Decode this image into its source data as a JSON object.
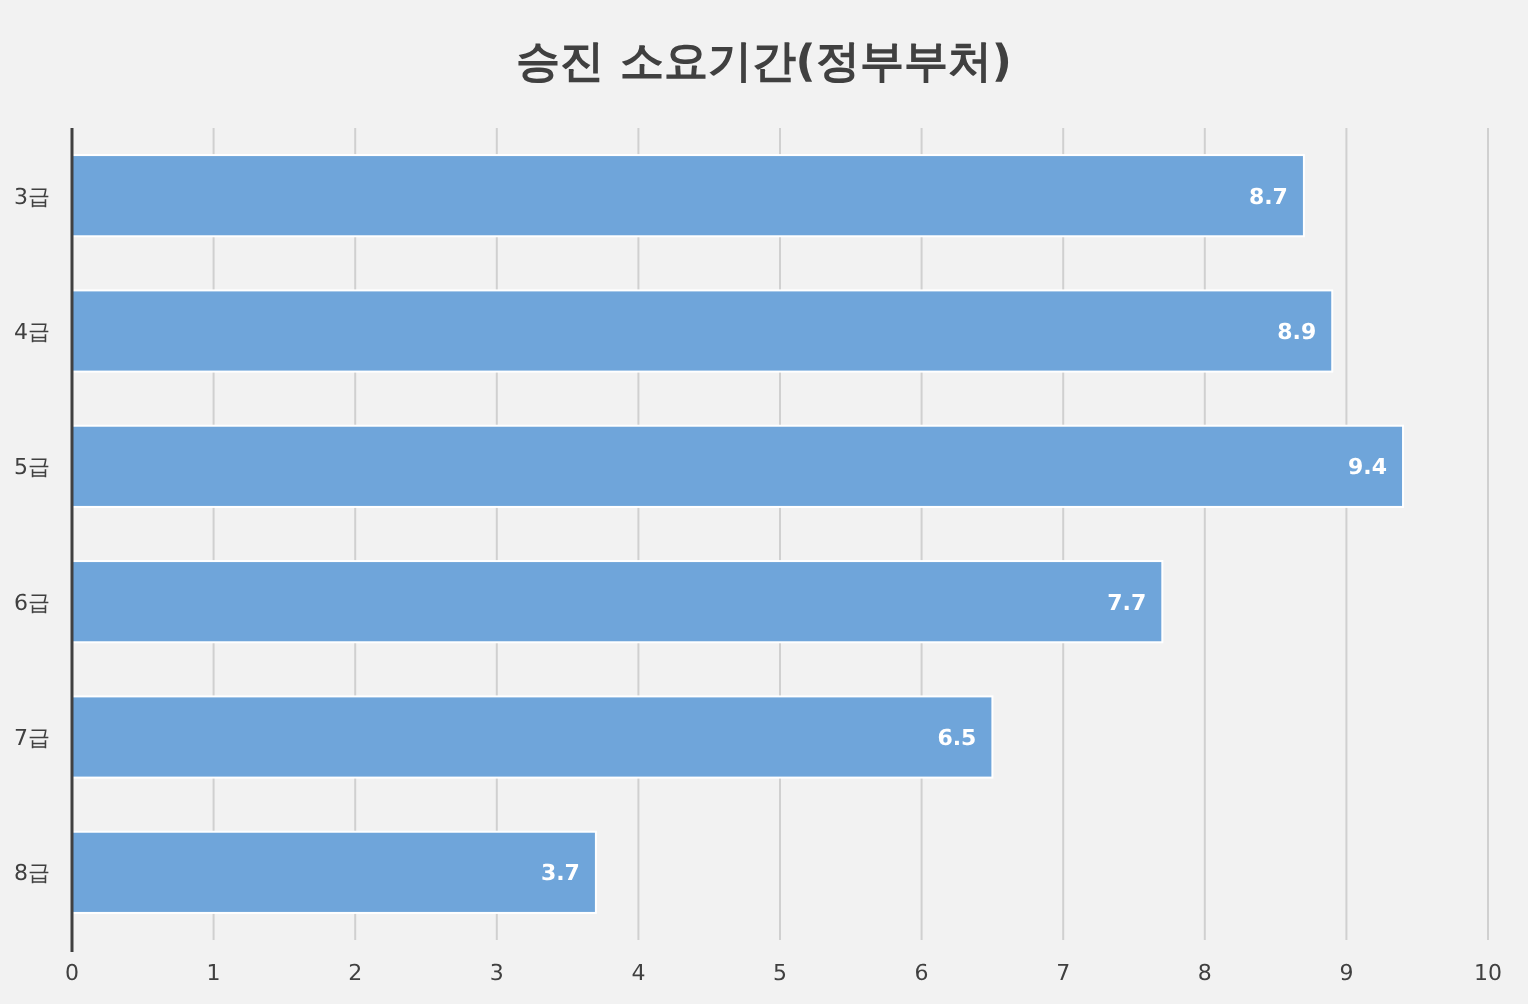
{
  "chart_data": {
    "type": "bar",
    "orientation": "horizontal",
    "title": "승진 소요기간(정부부처)",
    "categories": [
      "3급",
      "4급",
      "5급",
      "6급",
      "7급",
      "8급"
    ],
    "values": [
      8.7,
      8.9,
      9.4,
      7.7,
      6.5,
      3.7
    ],
    "color": "#6fa5da",
    "xlim": [
      0,
      10
    ],
    "xticks": [
      0,
      1,
      2,
      3,
      4,
      5,
      6,
      7,
      8,
      9,
      10
    ],
    "grid": "x",
    "data_labels": true
  }
}
